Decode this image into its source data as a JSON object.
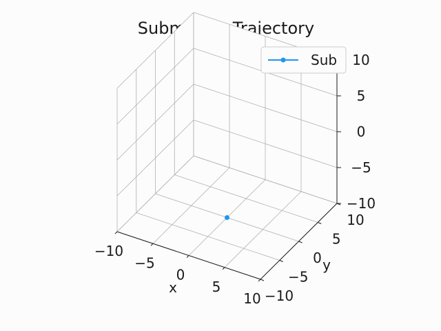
{
  "chart_data": {
    "type": "scatter",
    "projection": "3d",
    "title": "Submarine Trajectory",
    "xlabel": "x",
    "ylabel": "y",
    "zlabel": "",
    "xlim": [
      -10,
      10
    ],
    "ylim": [
      -10,
      10
    ],
    "zlim": [
      -10,
      10
    ],
    "ticks": {
      "x": [
        -10,
        -5,
        0,
        5,
        10
      ],
      "y": [
        -10,
        -5,
        0,
        5,
        10
      ],
      "z": [
        -10,
        -5,
        0,
        5,
        10
      ]
    },
    "tick_labels": {
      "x": [
        "−10",
        "−5",
        "0",
        "5",
        "10"
      ],
      "y": [
        "−10",
        "−5",
        "0",
        "5",
        "10"
      ],
      "z": [
        "−10",
        "−5",
        "0",
        "5",
        "10"
      ]
    },
    "grid": true,
    "legend_position": "top-right",
    "series": [
      {
        "name": "Sub",
        "color": "#1f96f0",
        "marker": "circle",
        "points": [
          {
            "x": 0,
            "y": 0,
            "z": -10
          }
        ]
      }
    ]
  }
}
